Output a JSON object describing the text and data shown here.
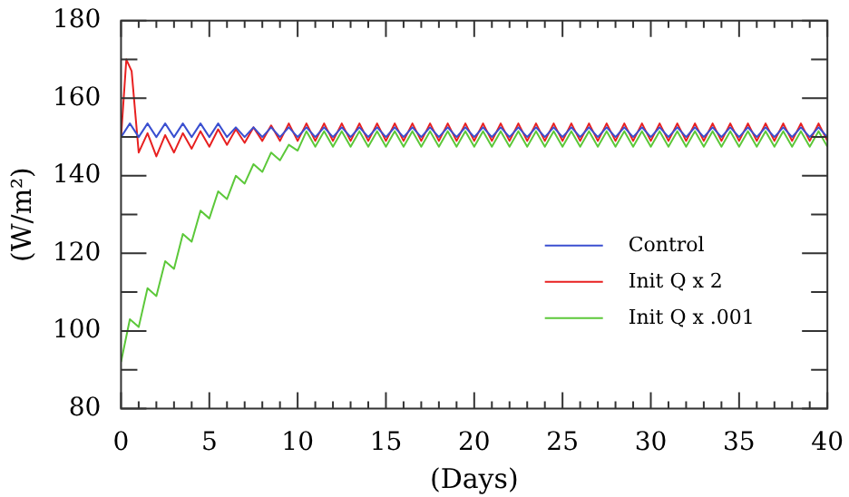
{
  "chart_data": {
    "type": "line",
    "xlabel": "(Days)",
    "ylabel": "(W/m²)",
    "xlim": [
      0,
      40
    ],
    "ylim": [
      80,
      180
    ],
    "xticks": [
      0,
      {
        "value": 1,
        "label": null
      },
      {
        "value": 2,
        "label": null
      },
      {
        "value": 3,
        "label": null
      },
      {
        "value": 4,
        "label": null
      },
      5,
      {
        "value": 6,
        "label": null
      },
      {
        "value": 7,
        "label": null
      },
      {
        "value": 8,
        "label": null
      },
      {
        "value": 9,
        "label": null
      },
      10,
      {
        "value": 11,
        "label": null
      },
      {
        "value": 12,
        "label": null
      },
      {
        "value": 13,
        "label": null
      },
      {
        "value": 14,
        "label": null
      },
      15,
      {
        "value": 16,
        "label": null
      },
      {
        "value": 17,
        "label": null
      },
      {
        "value": 18,
        "label": null
      },
      {
        "value": 19,
        "label": null
      },
      20,
      {
        "value": 21,
        "label": null
      },
      {
        "value": 22,
        "label": null
      },
      {
        "value": 23,
        "label": null
      },
      {
        "value": 24,
        "label": null
      },
      25,
      {
        "value": 26,
        "label": null
      },
      {
        "value": 27,
        "label": null
      },
      {
        "value": 28,
        "label": null
      },
      {
        "value": 29,
        "label": null
      },
      30,
      {
        "value": 31,
        "label": null
      },
      {
        "value": 32,
        "label": null
      },
      {
        "value": 33,
        "label": null
      },
      {
        "value": 34,
        "label": null
      },
      35,
      {
        "value": 36,
        "label": null
      },
      {
        "value": 37,
        "label": null
      },
      {
        "value": 38,
        "label": null
      },
      {
        "value": 39,
        "label": null
      },
      40
    ],
    "yticks": [
      80,
      {
        "value": 90,
        "label": null
      },
      100,
      {
        "value": 110,
        "label": null
      },
      120,
      {
        "value": 130,
        "label": null
      },
      140,
      {
        "value": 150,
        "label": null
      },
      160,
      {
        "value": 170,
        "label": null
      },
      180
    ],
    "x": [
      0,
      0.5,
      1,
      1.5,
      2,
      2.5,
      3,
      3.5,
      4,
      4.5,
      5,
      5.5,
      6,
      6.5,
      7,
      7.5,
      8,
      8.5,
      9,
      9.5,
      10,
      10.5,
      11,
      11.5,
      12,
      12.5,
      13,
      13.5,
      14,
      14.5,
      15,
      15.5,
      16,
      16.5,
      17,
      17.5,
      18,
      18.5,
      19,
      19.5,
      20,
      20.5,
      21,
      21.5,
      22,
      22.5,
      23,
      23.5,
      24,
      24.5,
      25,
      25.5,
      26,
      26.5,
      27,
      27.5,
      28,
      28.5,
      29,
      29.5,
      30,
      30.5,
      31,
      31.5,
      32,
      32.5,
      33,
      33.5,
      34,
      34.5,
      35,
      35.5,
      36,
      36.5,
      37,
      37.5,
      38,
      38.5,
      39,
      39.5,
      40
    ],
    "legend": "right",
    "grid": false,
    "marker": "none",
    "line_style": "solid",
    "series": [
      {
        "name": "Control",
        "color": "#3a4fd0",
        "values": [
          150,
          153.5,
          150,
          153.5,
          150,
          153.5,
          150,
          153.5,
          150,
          153.5,
          150,
          153.5,
          150,
          152.5,
          150,
          152.5,
          150,
          152.5,
          150,
          152.5,
          150,
          152.5,
          150,
          152.5,
          150,
          152.5,
          150,
          152.5,
          150,
          152.5,
          150,
          152.5,
          150,
          152.5,
          150,
          152.5,
          150,
          152.5,
          150,
          152.5,
          150,
          152.5,
          150,
          152.5,
          150,
          152.5,
          150,
          152.5,
          150,
          152.5,
          150,
          152.5,
          150,
          152.5,
          150,
          152.5,
          150,
          152.5,
          150,
          152.5,
          150,
          152.5,
          150,
          152.5,
          150,
          152.5,
          150,
          152.5,
          150,
          152.5,
          150,
          152.5,
          150,
          152.5,
          150,
          152.5,
          150,
          152.5,
          150,
          152.5,
          150
        ]
      },
      {
        "name": "Init Q x 2",
        "color": "#e82020",
        "x": [
          0,
          0.3,
          0.6,
          1,
          1.5,
          2,
          2.5,
          3,
          3.5,
          4,
          4.5,
          5,
          5.5,
          6,
          6.5,
          7,
          7.5,
          8,
          8.5,
          9,
          9.5,
          10,
          10.5,
          11,
          11.5,
          12,
          12.5,
          13,
          13.5,
          14,
          14.5,
          15,
          15.5,
          16,
          16.5,
          17,
          17.5,
          18,
          18.5,
          19,
          19.5,
          20,
          20.5,
          21,
          21.5,
          22,
          22.5,
          23,
          23.5,
          24,
          24.5,
          25,
          25.5,
          26,
          26.5,
          27,
          27.5,
          28,
          28.5,
          29,
          29.5,
          30,
          30.5,
          31,
          31.5,
          32,
          32.5,
          33,
          33.5,
          34,
          34.5,
          35,
          35.5,
          36,
          36.5,
          37,
          37.5,
          38,
          38.5,
          39,
          39.5,
          40
        ],
        "values": [
          150,
          170,
          167,
          146,
          151,
          145,
          150.5,
          146,
          151,
          147,
          151.5,
          147.5,
          152,
          148,
          152,
          148.5,
          152.5,
          149,
          153,
          149,
          153.5,
          149,
          153.5,
          149,
          153.5,
          149,
          153.5,
          149,
          153.5,
          149,
          153.5,
          149,
          153.5,
          149,
          153.5,
          149,
          153.5,
          149,
          153.5,
          149,
          153.5,
          149,
          153.5,
          149,
          153.5,
          149,
          153.5,
          149,
          153.5,
          149,
          153.5,
          149,
          153.5,
          149,
          153.5,
          149,
          153.5,
          149,
          153.5,
          149,
          153.5,
          149,
          153.5,
          149,
          153.5,
          149,
          153.5,
          149,
          153.5,
          149,
          153.5,
          149,
          153.5,
          149,
          153.5,
          149,
          153.5,
          149,
          153.5,
          149,
          153.5,
          149
        ]
      },
      {
        "name": "Init Q x .001",
        "color": "#5cc83a",
        "values": [
          92,
          103,
          101,
          111,
          109,
          118,
          116,
          125,
          123,
          131,
          129,
          136,
          134,
          140,
          138,
          143,
          141,
          146,
          144,
          148,
          146.5,
          151.5,
          147.5,
          151.5,
          147.5,
          151.5,
          147.5,
          151.5,
          147.5,
          151.5,
          147.5,
          151.5,
          147.5,
          151.5,
          147.5,
          151.5,
          147.5,
          151.5,
          147.5,
          151.5,
          147.5,
          151.5,
          147.5,
          151.5,
          147.5,
          151.5,
          147.5,
          151.5,
          147.5,
          151.5,
          147.5,
          151.5,
          147.5,
          151.5,
          147.5,
          151.5,
          147.5,
          151.5,
          147.5,
          151.5,
          147.5,
          151.5,
          147.5,
          151.5,
          147.5,
          151.5,
          147.5,
          151.5,
          147.5,
          151.5,
          147.5,
          151.5,
          147.5,
          151.5,
          147.5,
          151.5,
          147.5,
          151.5,
          147.5,
          151.5,
          147.5
        ]
      }
    ]
  }
}
